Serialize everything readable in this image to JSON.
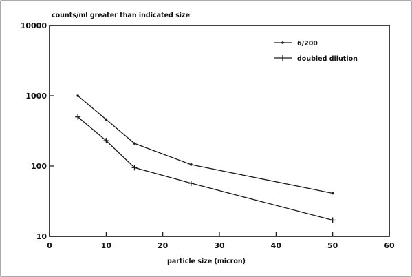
{
  "chart_data": {
    "type": "line",
    "title": "counts/ml greater than indicated size",
    "xlabel": "particle size (micron)",
    "ylabel": "",
    "x_scale": "linear",
    "y_scale": "log",
    "xlim": [
      0,
      60
    ],
    "ylim": [
      10,
      10000
    ],
    "x_ticks": [
      0,
      10,
      20,
      30,
      40,
      50,
      60
    ],
    "y_ticks": [
      10,
      100,
      1000,
      10000
    ],
    "grid": false,
    "legend_position": "top-right",
    "series": [
      {
        "name": "6/200",
        "marker": "dot",
        "color": "#1a1a1a",
        "x": [
          5,
          10,
          15,
          25,
          50
        ],
        "y": [
          1000,
          460,
          210,
          105,
          41
        ]
      },
      {
        "name": "doubled dilution",
        "marker": "plus",
        "color": "#1a1a1a",
        "x": [
          5,
          10,
          15,
          25,
          50
        ],
        "y": [
          500,
          230,
          95,
          57,
          17
        ]
      }
    ]
  }
}
